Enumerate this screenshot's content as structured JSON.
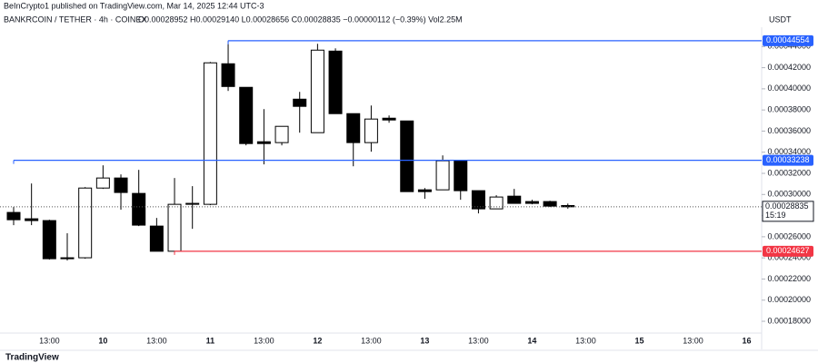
{
  "header": {
    "title": "BeInCrypto1 published on TradingView.com, Mar 14, 2025 12:44 UTC-3",
    "symbol": "BANKRCOIN / TETHER · 4h · COINEX",
    "ohlc": "O0.00028952 H0.00029140 L0.00028656 C0.00028835 −0.00000112 (−0.39%) Vol2.25M",
    "currency": "USDT"
  },
  "footer": "TradingView",
  "chart_data": {
    "type": "candlestick",
    "categories": [
      null,
      null,
      "13:00",
      null,
      null,
      "10",
      null,
      null,
      "13:00",
      null,
      null,
      "11",
      null,
      null,
      "13:00",
      null,
      null,
      "12",
      null,
      null,
      "13:00",
      null,
      null,
      "13",
      null,
      null,
      "13:00",
      null,
      null,
      "14",
      null,
      null,
      "13:00",
      null,
      null,
      "15",
      null,
      null,
      "13:00",
      null,
      null,
      "16"
    ],
    "open": [
      0.000283,
      0.000277,
      0.0002753,
      0.0002401,
      0.0002401,
      0.0003061,
      0.0003156,
      0.000301,
      0.0002701,
      0.00024627,
      0.0002907,
      0.0002907,
      0.0004237,
      0.0004014,
      0.0003499,
      0.0003491,
      0.0003902,
      0.0003585,
      0.0004357,
      0.0003765,
      0.0003491,
      0.0003722,
      0.0003696,
      0.0003044,
      0.0003044,
      0.0003319,
      0.0003036,
      0.0002864,
      0.0002984,
      0.0002933,
      0.0002933,
      0.00028952,
      null,
      null,
      null,
      null,
      null,
      null,
      null,
      null,
      null,
      null
    ],
    "high": [
      0.0002881,
      0.0003104,
      0.0002761,
      0.0002633,
      0.000307,
      0.0003276,
      0.000319,
      0.0003233,
      0.0002778,
      0.0003156,
      0.0003079,
      0.0004254,
      0.00044554,
      0.0004014,
      0.0003808,
      0.0003645,
      0.0003971,
      0.0004426,
      0.0004383,
      0.0003765,
      0.0003842,
      0.0003748,
      0.0003696,
      0.0003061,
      0.000337,
      0.0003319,
      0.0003036,
      0.0002993,
      0.0003053,
      0.000295,
      0.0002941,
      0.0002914,
      null,
      null,
      null,
      null,
      null,
      null,
      null,
      null,
      null,
      null
    ],
    "low": [
      0.000271,
      0.000271,
      0.0002384,
      0.0002375,
      0.0002392,
      0.0003053,
      0.0002856,
      0.0002701,
      0.00024627,
      0.00024627,
      0.0002675,
      0.0002899,
      0.000398,
      0.0003465,
      0.0003285,
      0.0003465,
      0.0003585,
      0.0003585,
      0.0003765,
      0.0003267,
      0.0003405,
      0.0003679,
      0.0003027,
      0.0002959,
      0.0003044,
      0.000295,
      0.0002821,
      0.0002864,
      0.0002916,
      0.0002907,
      0.0002881,
      0.00028656,
      null,
      null,
      null,
      null,
      null,
      null,
      null,
      null,
      null,
      null
    ],
    "close": [
      0.0002761,
      0.0002753,
      0.0002392,
      0.0002392,
      0.0003061,
      0.0003156,
      0.0003019,
      0.000271,
      0.00024627,
      0.0002907,
      0.0002916,
      0.0004246,
      0.0004022,
      0.0003482,
      0.0003482,
      0.0003645,
      0.0003834,
      0.0004366,
      0.0003765,
      0.0003491,
      0.0003714,
      0.0003705,
      0.0003027,
      0.0003027,
      0.0003319,
      0.0003036,
      0.0002864,
      0.0002976,
      0.0002916,
      0.0002916,
      0.000289,
      0.00028835,
      null,
      null,
      null,
      null,
      null,
      null,
      null,
      null,
      null,
      null
    ],
    "up_color": "#ffffff",
    "down_color": "#000000",
    "grid": false,
    "ylim": [
      0.000168,
      0.000454
    ],
    "yticks": [
      {
        "value": 0.00018,
        "label": "0.00018000"
      },
      {
        "value": 0.0002,
        "label": "0.00020000"
      },
      {
        "value": 0.00022,
        "label": "0.00022000"
      },
      {
        "value": 0.00024,
        "label": "0.00024000"
      },
      {
        "value": 0.00026,
        "label": "0.00026000"
      },
      {
        "value": 0.00028,
        "label": "0.00028000"
      },
      {
        "value": 0.0003,
        "label": "0.00030000"
      },
      {
        "value": 0.00032,
        "label": "0.00032000"
      },
      {
        "value": 0.00034,
        "label": "0.00034000"
      },
      {
        "value": 0.00036,
        "label": "0.00036000"
      },
      {
        "value": 0.00038,
        "label": "0.00038000"
      },
      {
        "value": 0.0004,
        "label": "0.00040000"
      },
      {
        "value": 0.00042,
        "label": "0.00042000"
      },
      {
        "value": 0.00044,
        "label": "0.00044000"
      }
    ],
    "levels": [
      {
        "value": 0.00044554,
        "label": "0.00044554",
        "color": "#2962ff",
        "start": 12
      },
      {
        "value": 0.00033238,
        "label": "0.00033238",
        "color": "#2962ff",
        "start": 0
      },
      {
        "value": 0.00024627,
        "label": "0.00024627",
        "color": "#f23645",
        "start": 9
      }
    ],
    "last_price": {
      "value": 0.00028835,
      "label": "0.00028835",
      "countdown": "15:19"
    }
  }
}
